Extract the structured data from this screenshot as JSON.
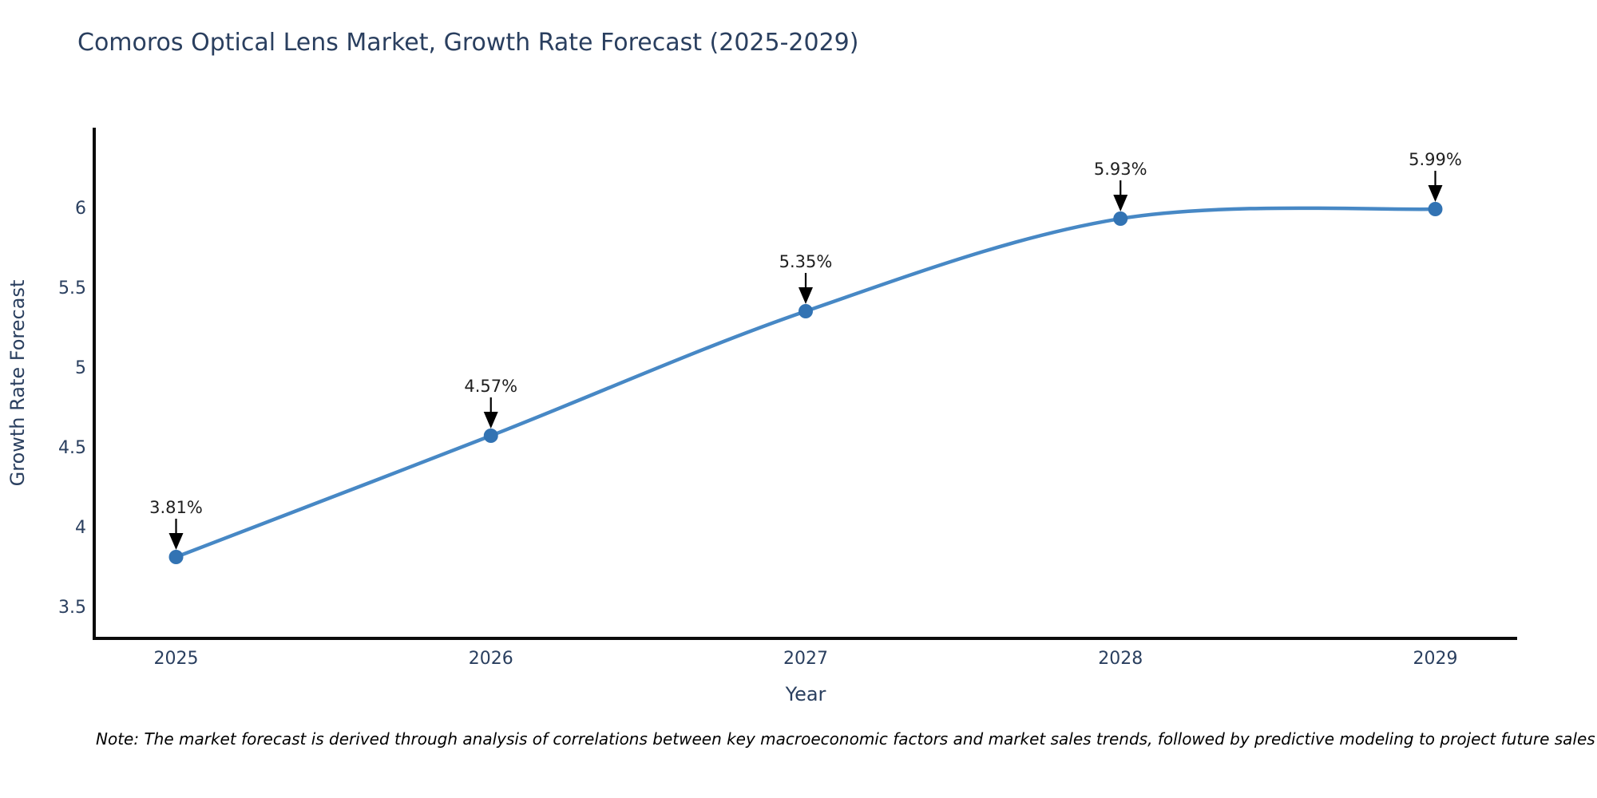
{
  "chart_data": {
    "type": "line",
    "title": "Comoros Optical Lens Market, Growth Rate Forecast (2025-2029)",
    "xlabel": "Year",
    "ylabel": "Growth Rate Forecast",
    "x": [
      2025,
      2026,
      2027,
      2028,
      2029
    ],
    "values": [
      3.81,
      4.57,
      5.35,
      5.93,
      5.99
    ],
    "point_labels": [
      "3.81%",
      "4.57%",
      "5.35%",
      "5.93%",
      "5.99%"
    ],
    "xticks": [
      2025,
      2026,
      2027,
      2028,
      2029
    ],
    "xtick_labels": [
      "2025",
      "2026",
      "2027",
      "2028",
      "2029"
    ],
    "yticks": [
      3.5,
      4,
      4.5,
      5,
      5.5,
      6
    ],
    "ytick_labels": [
      "3.5",
      "4",
      "4.5",
      "5",
      "5.5",
      "6"
    ],
    "xlim": [
      2024.74,
      2029.26
    ],
    "ylim": [
      3.3,
      6.5
    ],
    "grid": false,
    "legend": false,
    "line_shape": "spline",
    "colors": {
      "line": "#4788c5",
      "marker": "#3273b3",
      "axis": "#0b0b0b",
      "axis_text": "#2a3f5f",
      "annotation_text": "#1f1f1f",
      "annotation_arrow": "#000000"
    }
  },
  "note": "Note: The market forecast is derived through analysis of correlations between key macroeconomic factors and market sales trends, followed by predictive modeling to project future sales"
}
